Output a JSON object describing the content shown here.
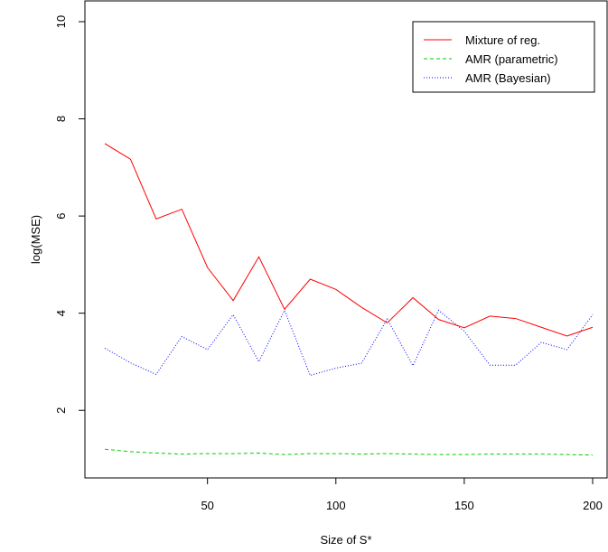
{
  "chart_data": {
    "type": "line",
    "title": "",
    "xlabel": "Size of S*",
    "ylabel": "log(MSE)",
    "xlim": [
      10,
      200
    ],
    "ylim": [
      1,
      10
    ],
    "x_ticks": [
      50,
      100,
      150,
      200
    ],
    "y_ticks": [
      2,
      4,
      6,
      8,
      10
    ],
    "grid": false,
    "legend_position": "top-right",
    "x": [
      10,
      20,
      30,
      40,
      50,
      60,
      70,
      80,
      90,
      100,
      110,
      120,
      130,
      140,
      150,
      160,
      170,
      180,
      190,
      200
    ],
    "series": [
      {
        "name": "Mixture of reg.",
        "color": "#ff0000",
        "line_style": "solid",
        "values": [
          7.49,
          7.17,
          5.94,
          6.14,
          4.94,
          4.26,
          5.16,
          4.08,
          4.7,
          4.49,
          4.12,
          3.8,
          4.32,
          3.87,
          3.7,
          3.94,
          3.89,
          3.71,
          3.53,
          3.71
        ]
      },
      {
        "name": "AMR (parametric)",
        "color": "#00cc00",
        "line_style": "dashed",
        "values": [
          1.2,
          1.15,
          1.12,
          1.1,
          1.11,
          1.11,
          1.12,
          1.09,
          1.11,
          1.11,
          1.1,
          1.11,
          1.1,
          1.09,
          1.09,
          1.1,
          1.1,
          1.1,
          1.09,
          1.08
        ]
      },
      {
        "name": "AMR (Bayesian)",
        "color": "#0000ff",
        "line_style": "dotted",
        "values": [
          3.28,
          2.98,
          2.74,
          3.52,
          3.25,
          3.97,
          3.0,
          4.06,
          2.72,
          2.87,
          2.97,
          3.88,
          2.92,
          4.06,
          3.63,
          2.93,
          2.93,
          3.4,
          3.25,
          3.97
        ]
      }
    ]
  }
}
